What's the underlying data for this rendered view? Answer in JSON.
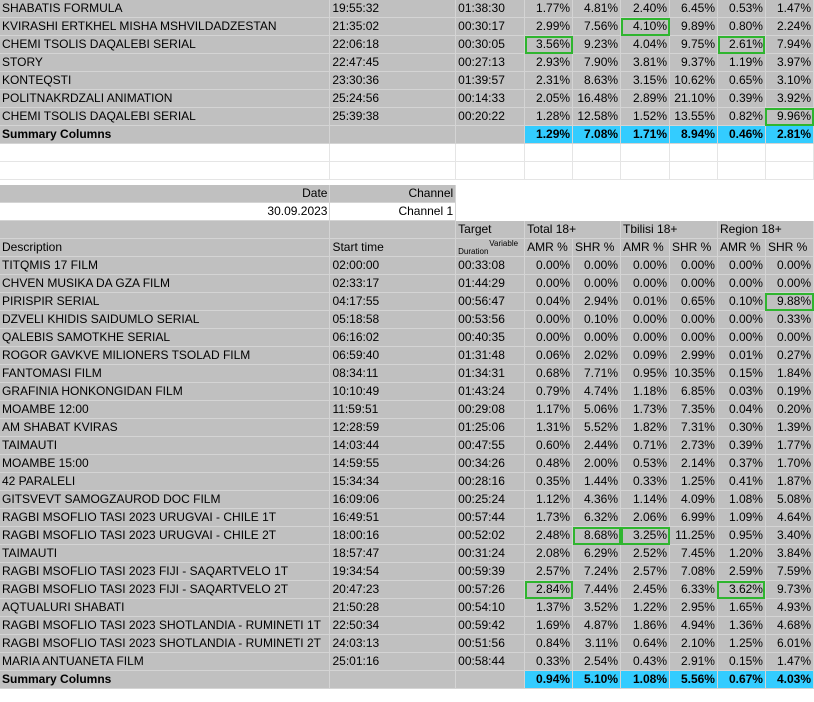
{
  "top_rows": [
    {
      "desc": "SHABATIS FORMULA",
      "start": "19:55:32",
      "dur": "01:38:30",
      "v": [
        "1.77%",
        "4.81%",
        "2.40%",
        "6.45%",
        "0.53%",
        "1.47%"
      ]
    },
    {
      "desc": "KVIRASHI ERTKHEL MISHA MSHVILDADZESTAN",
      "start": "21:35:02",
      "dur": "00:30:17",
      "v": [
        "2.99%",
        "7.56%",
        "4.10%",
        "9.89%",
        "0.80%",
        "2.24%"
      ],
      "hl": [
        2
      ]
    },
    {
      "desc": "CHEMI TSOLIS DAQALEBI SERIAL",
      "start": "22:06:18",
      "dur": "00:30:05",
      "v": [
        "3.56%",
        "9.23%",
        "4.04%",
        "9.75%",
        "2.61%",
        "7.94%"
      ],
      "hl": [
        0,
        4
      ]
    },
    {
      "desc": "STORY",
      "start": "22:47:45",
      "dur": "00:27:13",
      "v": [
        "2.93%",
        "7.90%",
        "3.81%",
        "9.37%",
        "1.19%",
        "3.97%"
      ]
    },
    {
      "desc": "KONTEQSTI",
      "start": "23:30:36",
      "dur": "01:39:57",
      "v": [
        "2.31%",
        "8.63%",
        "3.15%",
        "10.62%",
        "0.65%",
        "3.10%"
      ]
    },
    {
      "desc": "POLITNAKRDZALI ANIMATION",
      "start": "25:24:56",
      "dur": "00:14:33",
      "v": [
        "2.05%",
        "16.48%",
        "2.89%",
        "21.10%",
        "0.39%",
        "3.92%"
      ]
    },
    {
      "desc": "CHEMI TSOLIS DAQALEBI SERIAL",
      "start": "25:39:38",
      "dur": "00:20:22",
      "v": [
        "1.28%",
        "12.58%",
        "1.52%",
        "13.55%",
        "0.82%",
        "9.96%"
      ],
      "hl": [
        5
      ]
    }
  ],
  "top_summary": {
    "label": "Summary Columns",
    "v": [
      "1.29%",
      "7.08%",
      "1.71%",
      "8.94%",
      "0.46%",
      "2.81%"
    ]
  },
  "info": {
    "date_label": "Date",
    "channel_label": "Channel",
    "date": "30.09.2023",
    "channel": "Channel 1"
  },
  "header": {
    "target": "Target",
    "total": "Total 18+",
    "tbilisi": "Tbilisi 18+",
    "region": "Region 18+",
    "description": "Description",
    "start_time": "Start time",
    "duration": "Duration",
    "variable": "Variable",
    "amr": "AMR %",
    "shr": "SHR %"
  },
  "rows": [
    {
      "desc": "TITQMIS 17 FILM",
      "start": "02:00:00",
      "dur": "00:33:08",
      "v": [
        "0.00%",
        "0.00%",
        "0.00%",
        "0.00%",
        "0.00%",
        "0.00%"
      ]
    },
    {
      "desc": "CHVEN MUSIKA DA GZA FILM",
      "start": "02:33:17",
      "dur": "01:44:29",
      "v": [
        "0.00%",
        "0.00%",
        "0.00%",
        "0.00%",
        "0.00%",
        "0.00%"
      ]
    },
    {
      "desc": "PIRISPIR SERIAL",
      "start": "04:17:55",
      "dur": "00:56:47",
      "v": [
        "0.04%",
        "2.94%",
        "0.01%",
        "0.65%",
        "0.10%",
        "9.88%"
      ],
      "hl": [
        5
      ]
    },
    {
      "desc": "DZVELI KHIDIS SAIDUMLO SERIAL",
      "start": "05:18:58",
      "dur": "00:53:56",
      "v": [
        "0.00%",
        "0.10%",
        "0.00%",
        "0.00%",
        "0.00%",
        "0.33%"
      ]
    },
    {
      "desc": "QALEBIS SAMOTKHE SERIAL",
      "start": "06:16:02",
      "dur": "00:40:35",
      "v": [
        "0.00%",
        "0.00%",
        "0.00%",
        "0.00%",
        "0.00%",
        "0.00%"
      ]
    },
    {
      "desc": "ROGOR GAVKVE MILIONERS TSOLAD FILM",
      "start": "06:59:40",
      "dur": "01:31:48",
      "v": [
        "0.06%",
        "2.02%",
        "0.09%",
        "2.99%",
        "0.01%",
        "0.27%"
      ]
    },
    {
      "desc": "FANTOMASI FILM",
      "start": "08:34:11",
      "dur": "01:34:31",
      "v": [
        "0.68%",
        "7.71%",
        "0.95%",
        "10.35%",
        "0.15%",
        "1.84%"
      ]
    },
    {
      "desc": "GRAFINIA HONKONGIDAN FILM",
      "start": "10:10:49",
      "dur": "01:43:24",
      "v": [
        "0.79%",
        "4.74%",
        "1.18%",
        "6.85%",
        "0.03%",
        "0.19%"
      ]
    },
    {
      "desc": "MOAMBE 12:00",
      "start": "11:59:51",
      "dur": "00:29:08",
      "v": [
        "1.17%",
        "5.06%",
        "1.73%",
        "7.35%",
        "0.04%",
        "0.20%"
      ]
    },
    {
      "desc": "AM SHABAT KVIRAS",
      "start": "12:28:59",
      "dur": "01:25:06",
      "v": [
        "1.31%",
        "5.52%",
        "1.82%",
        "7.31%",
        "0.30%",
        "1.39%"
      ]
    },
    {
      "desc": "TAIMAUTI",
      "start": "14:03:44",
      "dur": "00:47:55",
      "v": [
        "0.60%",
        "2.44%",
        "0.71%",
        "2.73%",
        "0.39%",
        "1.77%"
      ]
    },
    {
      "desc": "MOAMBE 15:00",
      "start": "14:59:55",
      "dur": "00:34:26",
      "v": [
        "0.48%",
        "2.00%",
        "0.53%",
        "2.14%",
        "0.37%",
        "1.70%"
      ]
    },
    {
      "desc": "42 PARALELI",
      "start": "15:34:34",
      "dur": "00:28:16",
      "v": [
        "0.35%",
        "1.44%",
        "0.33%",
        "1.25%",
        "0.41%",
        "1.87%"
      ]
    },
    {
      "desc": "GITSVEVT SAMOGZAUROD DOC FILM",
      "start": "16:09:06",
      "dur": "00:25:24",
      "v": [
        "1.12%",
        "4.36%",
        "1.14%",
        "4.09%",
        "1.08%",
        "5.08%"
      ]
    },
    {
      "desc": "RAGBI MSOFLIO TASI 2023 URUGVAI - CHILE 1T",
      "start": "16:49:51",
      "dur": "00:57:44",
      "v": [
        "1.73%",
        "6.32%",
        "2.06%",
        "6.99%",
        "1.09%",
        "4.64%"
      ]
    },
    {
      "desc": "RAGBI MSOFLIO TASI 2023 URUGVAI - CHILE 2T",
      "start": "18:00:16",
      "dur": "00:52:02",
      "v": [
        "2.48%",
        "8.68%",
        "3.25%",
        "11.25%",
        "0.95%",
        "3.40%"
      ],
      "hl": [
        1,
        2
      ]
    },
    {
      "desc": "TAIMAUTI",
      "start": "18:57:47",
      "dur": "00:31:24",
      "v": [
        "2.08%",
        "6.29%",
        "2.52%",
        "7.45%",
        "1.20%",
        "3.84%"
      ]
    },
    {
      "desc": "RAGBI MSOFLIO TASI 2023 FIJI - SAQARTVELO 1T",
      "start": "19:34:54",
      "dur": "00:59:39",
      "v": [
        "2.57%",
        "7.24%",
        "2.57%",
        "7.08%",
        "2.59%",
        "7.59%"
      ]
    },
    {
      "desc": "RAGBI MSOFLIO TASI 2023 FIJI - SAQARTVELO 2T",
      "start": "20:47:23",
      "dur": "00:57:26",
      "v": [
        "2.84%",
        "7.44%",
        "2.45%",
        "6.33%",
        "3.62%",
        "9.73%"
      ],
      "hl": [
        0,
        4
      ]
    },
    {
      "desc": "AQTUALURI SHABATI",
      "start": "21:50:28",
      "dur": "00:54:10",
      "v": [
        "1.37%",
        "3.52%",
        "1.22%",
        "2.95%",
        "1.65%",
        "4.93%"
      ]
    },
    {
      "desc": "RAGBI MSOFLIO TASI 2023 SHOTLANDIA - RUMINETI 1T",
      "start": "22:50:34",
      "dur": "00:59:42",
      "v": [
        "1.69%",
        "4.87%",
        "1.86%",
        "4.94%",
        "1.36%",
        "4.68%"
      ]
    },
    {
      "desc": "RAGBI MSOFLIO TASI 2023 SHOTLANDIA - RUMINETI 2T",
      "start": "24:03:13",
      "dur": "00:51:56",
      "v": [
        "0.84%",
        "3.11%",
        "0.64%",
        "2.10%",
        "1.25%",
        "6.01%"
      ]
    },
    {
      "desc": "MARIA ANTUANETA FILM",
      "start": "25:01:16",
      "dur": "00:58:44",
      "v": [
        "0.33%",
        "2.54%",
        "0.43%",
        "2.91%",
        "0.15%",
        "1.47%"
      ]
    }
  ],
  "summary": {
    "label": "Summary Columns",
    "v": [
      "0.94%",
      "5.10%",
      "1.08%",
      "5.56%",
      "0.67%",
      "4.03%"
    ]
  }
}
